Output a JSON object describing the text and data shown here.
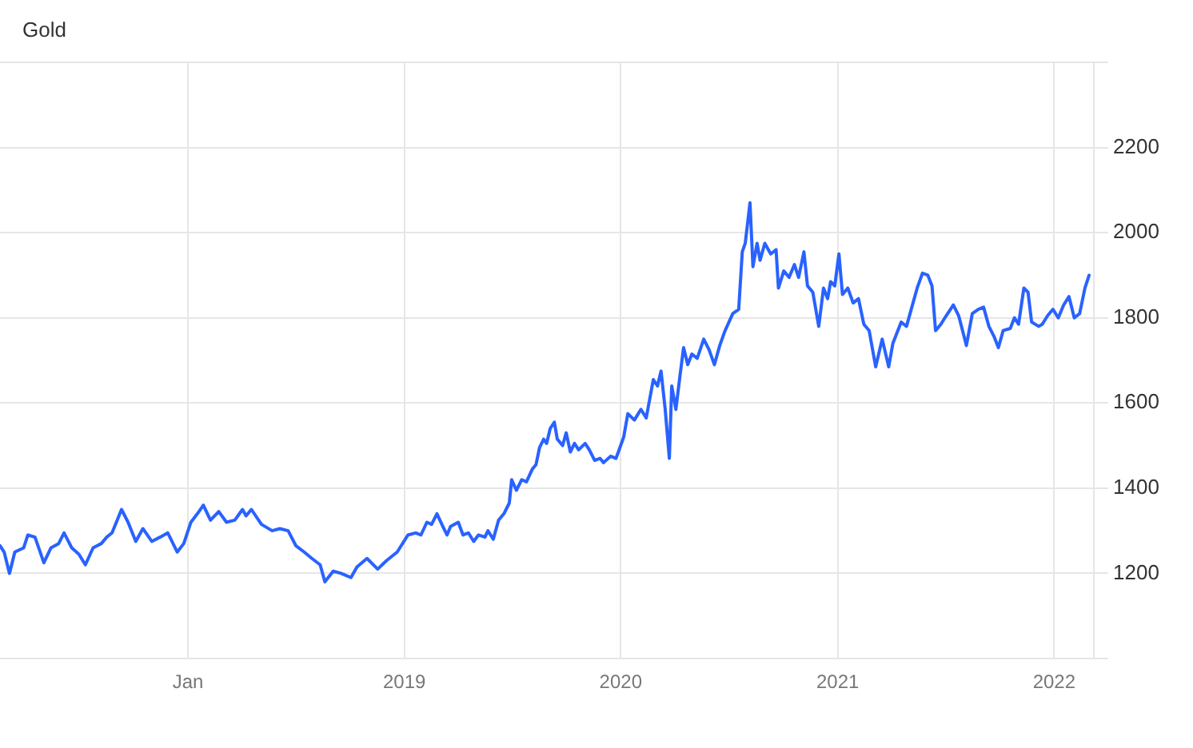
{
  "chart_data": {
    "type": "line",
    "title": "Gold",
    "color": "#2962ff",
    "marker": "none",
    "line_style": "solid",
    "grid": true,
    "legend": false,
    "xlim": [
      "2017-02-18",
      "2022-03-09"
    ],
    "xticks": [
      {
        "value": "2018",
        "label": "Jan"
      },
      "2019",
      "2020",
      "2021",
      "2022"
    ],
    "ylim": [
      1000,
      2400
    ],
    "yticks": [
      {
        "value": 1000,
        "label": null
      },
      1200,
      1400,
      1600,
      1800,
      2000,
      2200,
      {
        "value": 2400,
        "label": null
      }
    ],
    "x": [
      "2017-02-18",
      "2017-02-25",
      "2017-03-06",
      "2017-03-15",
      "2017-03-30",
      "2017-04-06",
      "2017-04-18",
      "2017-05-03",
      "2017-05-15",
      "2017-05-28",
      "2017-06-06",
      "2017-06-19",
      "2017-07-01",
      "2017-07-12",
      "2017-07-25",
      "2017-08-08",
      "2017-08-17",
      "2017-08-26",
      "2017-09-11",
      "2017-09-22",
      "2017-10-05",
      "2017-10-17",
      "2017-11-01",
      "2017-11-15",
      "2017-11-28",
      "2017-12-14",
      "2017-12-25",
      "2018-01-06",
      "2018-01-17",
      "2018-01-27",
      "2018-02-08",
      "2018-02-22",
      "2018-03-07",
      "2018-03-21",
      "2018-04-03",
      "2018-04-09",
      "2018-04-18",
      "2018-05-05",
      "2018-05-23",
      "2018-06-05",
      "2018-06-19",
      "2018-07-02",
      "2018-07-16",
      "2018-07-29",
      "2018-08-12",
      "2018-08-20",
      "2018-09-03",
      "2018-09-16",
      "2018-10-03",
      "2018-10-13",
      "2018-10-30",
      "2018-11-17",
      "2018-12-02",
      "2018-12-20",
      "2019-01-07",
      "2019-01-20",
      "2019-01-29",
      "2019-02-08",
      "2019-02-16",
      "2019-02-25",
      "2019-03-07",
      "2019-03-14",
      "2019-03-20",
      "2019-04-02",
      "2019-04-10",
      "2019-04-19",
      "2019-04-28",
      "2019-05-06",
      "2019-05-17",
      "2019-05-22",
      "2019-05-31",
      "2019-06-09",
      "2019-06-18",
      "2019-06-27",
      "2019-07-01",
      "2019-07-09",
      "2019-07-18",
      "2019-07-26",
      "2019-08-05",
      "2019-08-11",
      "2019-08-17",
      "2019-08-24",
      "2019-08-29",
      "2019-09-04",
      "2019-09-11",
      "2019-09-16",
      "2019-09-25",
      "2019-10-01",
      "2019-10-08",
      "2019-10-15",
      "2019-10-22",
      "2019-11-02",
      "2019-11-09",
      "2019-11-18",
      "2019-11-27",
      "2019-12-03",
      "2019-12-15",
      "2019-12-24",
      "2019-12-28",
      "2020-01-06",
      "2020-01-13",
      "2020-01-24",
      "2020-02-04",
      "2020-02-13",
      "2020-02-25",
      "2020-03-03",
      "2020-03-09",
      "2020-03-16",
      "2020-03-23",
      "2020-03-27",
      "2020-04-03",
      "2020-04-10",
      "2020-04-16",
      "2020-04-23",
      "2020-04-30",
      "2020-05-09",
      "2020-05-20",
      "2020-05-29",
      "2020-06-07",
      "2020-06-16",
      "2020-06-25",
      "2020-07-08",
      "2020-07-18",
      "2020-07-24",
      "2020-07-29",
      "2020-08-06",
      "2020-08-11",
      "2020-08-18",
      "2020-08-23",
      "2020-08-31",
      "2020-09-10",
      "2020-09-19",
      "2020-09-23",
      "2020-10-02",
      "2020-10-11",
      "2020-10-20",
      "2020-10-27",
      "2020-11-05",
      "2020-11-11",
      "2020-11-20",
      "2020-11-30",
      "2020-12-08",
      "2020-12-15",
      "2020-12-20",
      "2020-12-27",
      "2021-01-03",
      "2021-01-09",
      "2021-01-18",
      "2021-01-27",
      "2021-02-05",
      "2021-02-14",
      "2021-02-23",
      "2021-03-06",
      "2021-03-17",
      "2021-03-28",
      "2021-04-04",
      "2021-04-18",
      "2021-04-27",
      "2021-05-06",
      "2021-05-15",
      "2021-05-24",
      "2021-06-02",
      "2021-06-09",
      "2021-06-15",
      "2021-06-24",
      "2021-07-03",
      "2021-07-15",
      "2021-07-24",
      "2021-08-06",
      "2021-08-16",
      "2021-08-26",
      "2021-09-04",
      "2021-09-13",
      "2021-09-22",
      "2021-09-29",
      "2021-10-07",
      "2021-10-19",
      "2021-10-26",
      "2021-11-02",
      "2021-11-11",
      "2021-11-18",
      "2021-11-24",
      "2021-12-06",
      "2021-12-12",
      "2021-12-21",
      "2021-12-30",
      "2022-01-08",
      "2022-01-17",
      "2022-01-26",
      "2022-02-04",
      "2022-02-13",
      "2022-02-22",
      "2022-03-01"
    ],
    "values": [
      1265,
      1250,
      1200,
      1250,
      1260,
      1290,
      1285,
      1225,
      1260,
      1270,
      1295,
      1260,
      1245,
      1220,
      1260,
      1270,
      1285,
      1295,
      1350,
      1320,
      1275,
      1305,
      1275,
      1285,
      1295,
      1250,
      1270,
      1320,
      1340,
      1360,
      1325,
      1345,
      1320,
      1325,
      1350,
      1335,
      1350,
      1315,
      1300,
      1305,
      1300,
      1265,
      1250,
      1235,
      1220,
      1180,
      1205,
      1200,
      1190,
      1215,
      1235,
      1210,
      1230,
      1250,
      1290,
      1295,
      1290,
      1320,
      1315,
      1340,
      1310,
      1290,
      1310,
      1320,
      1290,
      1295,
      1275,
      1290,
      1285,
      1300,
      1280,
      1325,
      1340,
      1365,
      1420,
      1395,
      1420,
      1415,
      1445,
      1455,
      1495,
      1515,
      1505,
      1540,
      1555,
      1515,
      1500,
      1530,
      1485,
      1505,
      1490,
      1505,
      1490,
      1465,
      1470,
      1460,
      1475,
      1470,
      1485,
      1520,
      1575,
      1560,
      1585,
      1565,
      1655,
      1640,
      1675,
      1585,
      1470,
      1640,
      1585,
      1665,
      1730,
      1690,
      1715,
      1705,
      1750,
      1725,
      1690,
      1735,
      1770,
      1810,
      1820,
      1955,
      1975,
      2070,
      1920,
      1975,
      1935,
      1975,
      1950,
      1960,
      1870,
      1910,
      1895,
      1925,
      1895,
      1955,
      1875,
      1860,
      1780,
      1870,
      1845,
      1885,
      1875,
      1950,
      1855,
      1870,
      1835,
      1845,
      1785,
      1770,
      1685,
      1750,
      1685,
      1740,
      1790,
      1780,
      1825,
      1870,
      1905,
      1900,
      1875,
      1770,
      1785,
      1805,
      1830,
      1805,
      1735,
      1810,
      1820,
      1825,
      1780,
      1755,
      1730,
      1770,
      1775,
      1800,
      1785,
      1870,
      1860,
      1790,
      1780,
      1785,
      1805,
      1820,
      1800,
      1830,
      1850,
      1800,
      1810,
      1870,
      1900
    ]
  }
}
